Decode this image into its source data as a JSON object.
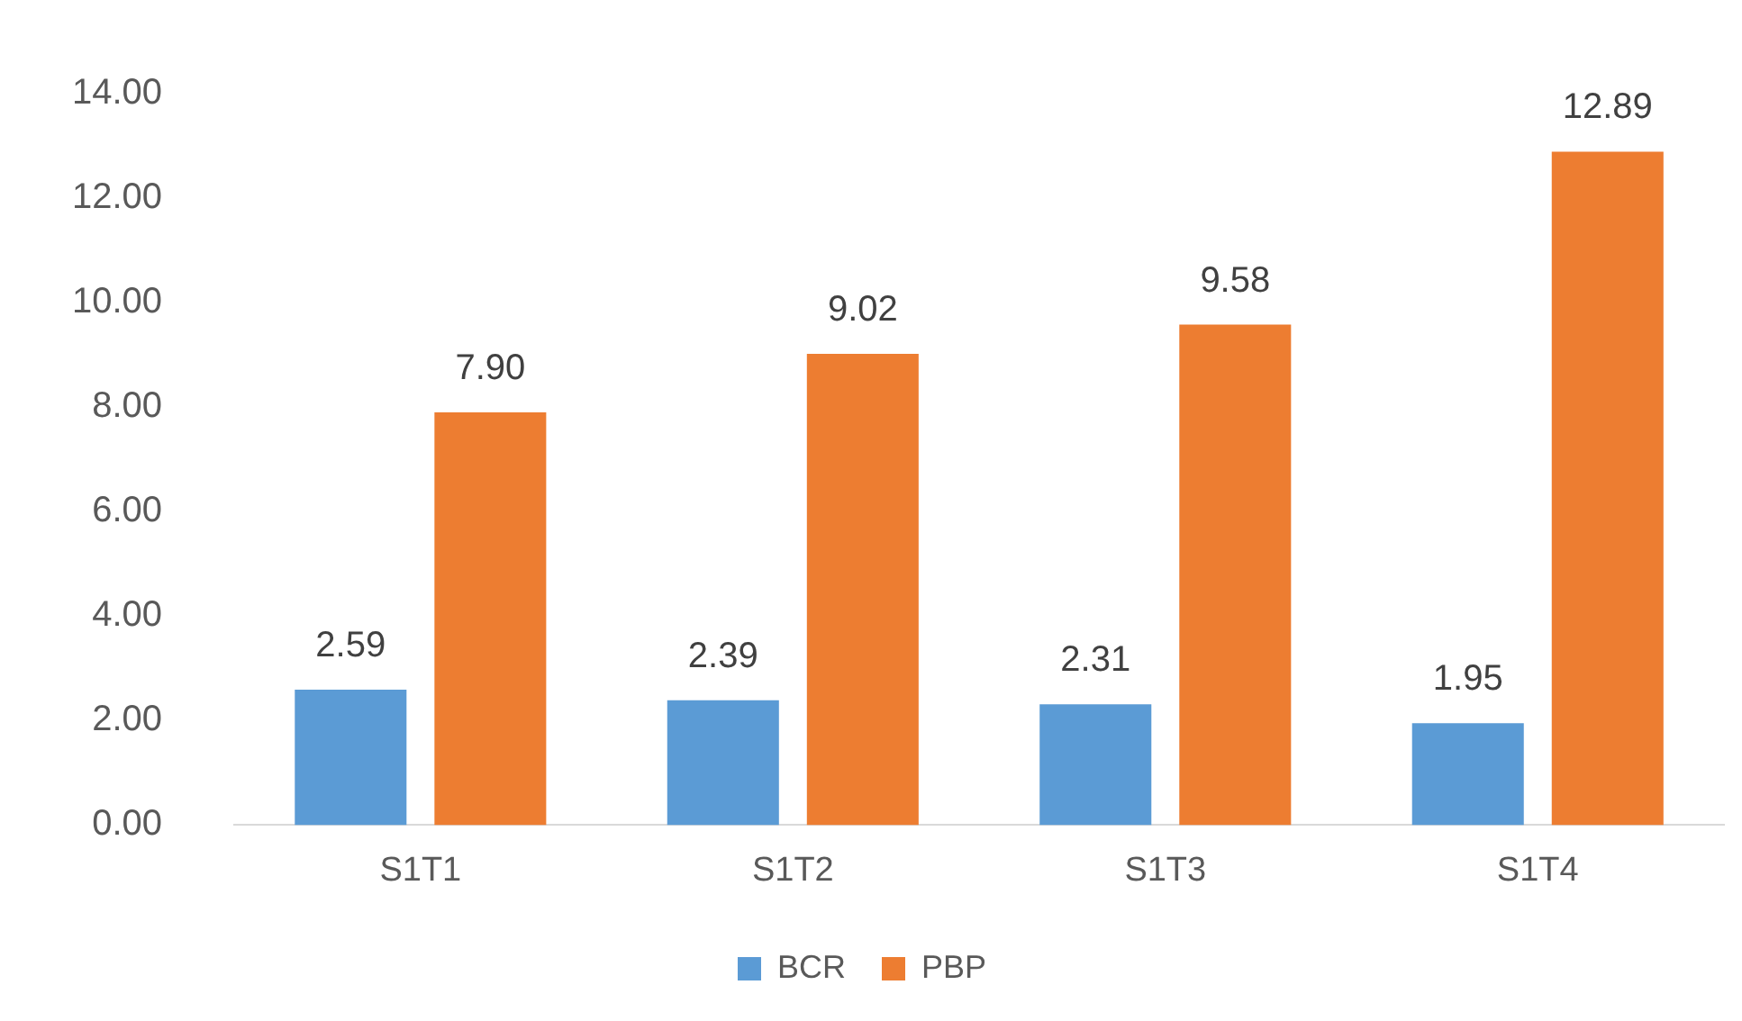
{
  "chart_data": {
    "type": "bar",
    "categories": [
      "S1T1",
      "S1T2",
      "S1T3",
      "S1T4"
    ],
    "series": [
      {
        "name": "BCR",
        "color": "#5b9bd5",
        "values": [
          2.59,
          2.39,
          2.31,
          1.95
        ],
        "value_labels": [
          "2.59",
          "2.39",
          "2.31",
          "1.95"
        ]
      },
      {
        "name": "PBP",
        "color": "#ed7d31",
        "values": [
          7.9,
          9.02,
          9.58,
          12.89
        ],
        "value_labels": [
          "7.90",
          "9.02",
          "9.58",
          "12.89"
        ]
      }
    ],
    "ylim": [
      0,
      14
    ],
    "yticks": [
      {
        "value": 0,
        "label": "0.00"
      },
      {
        "value": 2,
        "label": "2.00"
      },
      {
        "value": 4,
        "label": "4.00"
      },
      {
        "value": 6,
        "label": "6.00"
      },
      {
        "value": 8,
        "label": "8.00"
      },
      {
        "value": 10,
        "label": "10.00"
      },
      {
        "value": 12,
        "label": "12.00"
      },
      {
        "value": 14,
        "label": "14.00"
      }
    ],
    "grid": false,
    "legend": "bottom"
  }
}
